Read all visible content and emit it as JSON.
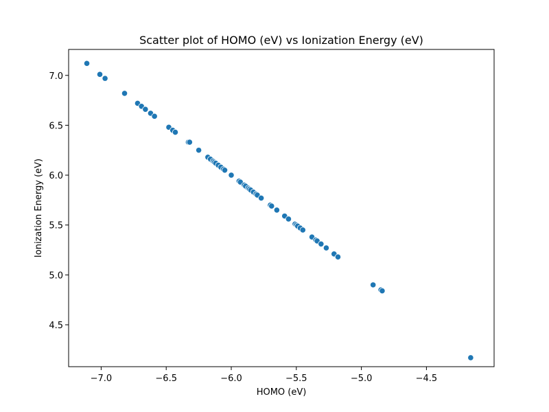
{
  "chart_data": {
    "type": "scatter",
    "title": "Scatter plot of HOMO (eV) vs Ionization Energy (eV)",
    "xlabel": "HOMO (eV)",
    "ylabel": "Ionization Energy (eV)",
    "xlim": [
      -7.25,
      -3.98
    ],
    "ylim": [
      4.08,
      7.26
    ],
    "xticks": [
      -7.0,
      -6.5,
      -6.0,
      -5.5,
      -5.0,
      -4.5
    ],
    "xtick_labels": [
      "−7.0",
      "−6.5",
      "−6.0",
      "−5.5",
      "−5.0",
      "−4.5"
    ],
    "yticks": [
      4.5,
      5.0,
      5.5,
      6.0,
      6.5,
      7.0
    ],
    "ytick_labels": [
      "4.5",
      "5.0",
      "5.5",
      "6.0",
      "6.5",
      "7.0"
    ],
    "grid": false,
    "color": "#1f77b4",
    "x": [
      -7.11,
      -7.01,
      -6.97,
      -6.82,
      -6.72,
      -6.69,
      -6.66,
      -6.62,
      -6.59,
      -6.48,
      -6.45,
      -6.43,
      -6.33,
      -6.32,
      -6.25,
      -6.18,
      -6.16,
      -6.14,
      -6.13,
      -6.12,
      -6.1,
      -6.08,
      -6.06,
      -6.05,
      -6.0,
      -5.94,
      -5.93,
      -5.9,
      -5.89,
      -5.87,
      -5.86,
      -5.85,
      -5.83,
      -5.81,
      -5.8,
      -5.77,
      -5.7,
      -5.69,
      -5.65,
      -5.59,
      -5.56,
      -5.51,
      -5.5,
      -5.49,
      -5.47,
      -5.45,
      -5.38,
      -5.35,
      -5.34,
      -5.31,
      -5.27,
      -5.21,
      -5.18,
      -4.91,
      -4.85,
      -4.84,
      -4.16
    ],
    "y": [
      7.12,
      7.01,
      6.97,
      6.82,
      6.72,
      6.69,
      6.66,
      6.62,
      6.59,
      6.48,
      6.45,
      6.43,
      6.33,
      6.33,
      6.25,
      6.18,
      6.16,
      6.14,
      6.13,
      6.12,
      6.1,
      6.08,
      6.06,
      6.05,
      6.0,
      5.94,
      5.93,
      5.9,
      5.89,
      5.87,
      5.86,
      5.85,
      5.83,
      5.81,
      5.8,
      5.77,
      5.7,
      5.69,
      5.65,
      5.59,
      5.56,
      5.51,
      5.5,
      5.49,
      5.47,
      5.45,
      5.38,
      5.35,
      5.34,
      5.31,
      5.27,
      5.21,
      5.18,
      4.9,
      4.85,
      4.84,
      4.17
    ]
  }
}
